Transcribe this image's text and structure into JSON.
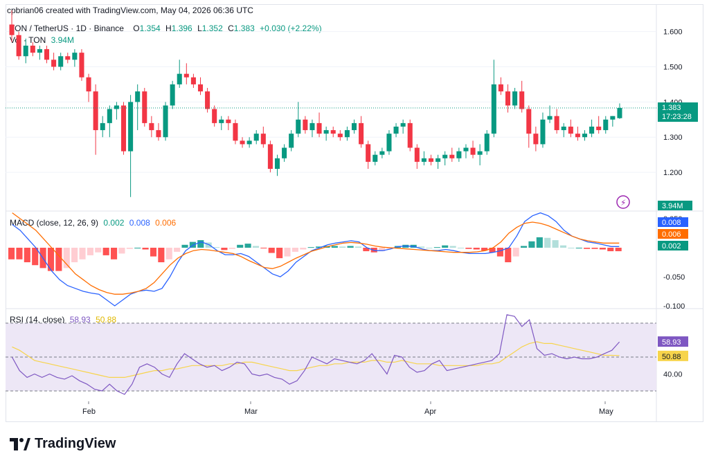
{
  "header": {
    "caption": "cpbrian06 created with TradingView.com, May 04, 2026 06:36 UTC"
  },
  "legend": {
    "symbol": "TON / TetherUS · 1D · Binance",
    "open_label": "O",
    "open": "1.354",
    "high_label": "H",
    "high": "1.396",
    "low_label": "L",
    "low": "1.352",
    "close_label": "C",
    "close": "1.383",
    "change": "+0.030 (+2.22%)",
    "vol_label": "Vol · TON",
    "vol": "3.94M"
  },
  "price_axis": {
    "ticks": [
      "1.600",
      "1.500",
      "1.400",
      "1.300",
      "1.200"
    ],
    "last_price": "1.383",
    "countdown": "17:23:28",
    "vol_badge": "3.94M"
  },
  "macd": {
    "label": "MACD (close, 12, 26, 9)",
    "macd_value": "0.002",
    "signal_value": "0.008",
    "hist_value": "0.006",
    "ticks": [
      "0.050",
      "-0.050",
      "-0.100"
    ],
    "badge_signal": "0.008",
    "badge_hist": "0.006",
    "badge_macd": "0.002"
  },
  "rsi": {
    "label": "RSI (14, close)",
    "rsi_value": "58.93",
    "ma_value": "50.88",
    "ticks": [
      "40.00"
    ],
    "badge_rsi": "58.93",
    "badge_ma": "50.88"
  },
  "time_axis": {
    "labels": [
      "Feb",
      "Mar",
      "Apr",
      "May"
    ]
  },
  "brand": {
    "name": "TradingView"
  },
  "colors": {
    "up": "#089981",
    "down": "#f23645",
    "macd_line": "#2962ff",
    "signal_line": "#ff6d00",
    "rsi_line": "#7e57c2",
    "rsi_ma": "#f7d44b",
    "rsi_band": "#ede7f6"
  },
  "chart_data": {
    "type": "candlestick",
    "candles": [
      [
        1.62,
        1.66,
        1.57,
        1.59
      ],
      [
        1.59,
        1.6,
        1.52,
        1.53
      ],
      [
        1.53,
        1.58,
        1.51,
        1.56
      ],
      [
        1.56,
        1.57,
        1.53,
        1.54
      ],
      [
        1.54,
        1.56,
        1.52,
        1.55
      ],
      [
        1.55,
        1.56,
        1.51,
        1.52
      ],
      [
        1.52,
        1.54,
        1.49,
        1.5
      ],
      [
        1.5,
        1.54,
        1.49,
        1.53
      ],
      [
        1.53,
        1.54,
        1.51,
        1.52
      ],
      [
        1.52,
        1.55,
        1.5,
        1.54
      ],
      [
        1.54,
        1.55,
        1.46,
        1.47
      ],
      [
        1.47,
        1.48,
        1.4,
        1.43
      ],
      [
        1.43,
        1.45,
        1.25,
        1.32
      ],
      [
        1.32,
        1.36,
        1.3,
        1.34
      ],
      [
        1.34,
        1.39,
        1.3,
        1.38
      ],
      [
        1.38,
        1.4,
        1.35,
        1.39
      ],
      [
        1.39,
        1.4,
        1.25,
        1.26
      ],
      [
        1.26,
        1.42,
        1.13,
        1.4
      ],
      [
        1.4,
        1.45,
        1.32,
        1.43
      ],
      [
        1.43,
        1.44,
        1.33,
        1.34
      ],
      [
        1.34,
        1.36,
        1.3,
        1.32
      ],
      [
        1.32,
        1.34,
        1.29,
        1.3
      ],
      [
        1.3,
        1.4,
        1.29,
        1.39
      ],
      [
        1.39,
        1.46,
        1.38,
        1.45
      ],
      [
        1.45,
        1.52,
        1.44,
        1.48
      ],
      [
        1.48,
        1.51,
        1.45,
        1.47
      ],
      [
        1.47,
        1.48,
        1.44,
        1.45
      ],
      [
        1.45,
        1.47,
        1.42,
        1.43
      ],
      [
        1.43,
        1.44,
        1.37,
        1.38
      ],
      [
        1.38,
        1.39,
        1.33,
        1.34
      ],
      [
        1.34,
        1.36,
        1.32,
        1.35
      ],
      [
        1.35,
        1.36,
        1.32,
        1.34
      ],
      [
        1.34,
        1.35,
        1.28,
        1.29
      ],
      [
        1.29,
        1.3,
        1.27,
        1.28
      ],
      [
        1.28,
        1.3,
        1.27,
        1.29
      ],
      [
        1.29,
        1.32,
        1.28,
        1.31
      ],
      [
        1.31,
        1.33,
        1.27,
        1.28
      ],
      [
        1.28,
        1.29,
        1.2,
        1.21
      ],
      [
        1.21,
        1.25,
        1.19,
        1.24
      ],
      [
        1.24,
        1.28,
        1.23,
        1.27
      ],
      [
        1.27,
        1.32,
        1.26,
        1.31
      ],
      [
        1.31,
        1.4,
        1.3,
        1.35
      ],
      [
        1.35,
        1.36,
        1.31,
        1.32
      ],
      [
        1.32,
        1.35,
        1.3,
        1.34
      ],
      [
        1.34,
        1.37,
        1.3,
        1.31
      ],
      [
        1.31,
        1.33,
        1.29,
        1.32
      ],
      [
        1.32,
        1.33,
        1.3,
        1.31
      ],
      [
        1.31,
        1.32,
        1.29,
        1.3
      ],
      [
        1.3,
        1.33,
        1.29,
        1.32
      ],
      [
        1.32,
        1.35,
        1.31,
        1.34
      ],
      [
        1.34,
        1.36,
        1.27,
        1.28
      ],
      [
        1.28,
        1.29,
        1.21,
        1.23
      ],
      [
        1.23,
        1.26,
        1.22,
        1.25
      ],
      [
        1.25,
        1.27,
        1.24,
        1.26
      ],
      [
        1.26,
        1.32,
        1.25,
        1.31
      ],
      [
        1.31,
        1.34,
        1.3,
        1.33
      ],
      [
        1.33,
        1.35,
        1.31,
        1.34
      ],
      [
        1.34,
        1.35,
        1.26,
        1.27
      ],
      [
        1.27,
        1.28,
        1.21,
        1.23
      ],
      [
        1.23,
        1.26,
        1.22,
        1.24
      ],
      [
        1.24,
        1.25,
        1.22,
        1.23
      ],
      [
        1.23,
        1.25,
        1.21,
        1.24
      ],
      [
        1.24,
        1.26,
        1.22,
        1.25
      ],
      [
        1.25,
        1.27,
        1.23,
        1.24
      ],
      [
        1.24,
        1.27,
        1.23,
        1.26
      ],
      [
        1.26,
        1.28,
        1.24,
        1.27
      ],
      [
        1.27,
        1.29,
        1.24,
        1.25
      ],
      [
        1.25,
        1.28,
        1.22,
        1.26
      ],
      [
        1.26,
        1.32,
        1.25,
        1.31
      ],
      [
        1.31,
        1.52,
        1.3,
        1.45
      ],
      [
        1.45,
        1.47,
        1.42,
        1.43
      ],
      [
        1.43,
        1.45,
        1.37,
        1.39
      ],
      [
        1.39,
        1.44,
        1.38,
        1.43
      ],
      [
        1.43,
        1.46,
        1.37,
        1.38
      ],
      [
        1.38,
        1.39,
        1.27,
        1.31
      ],
      [
        1.31,
        1.33,
        1.26,
        1.28
      ],
      [
        1.28,
        1.37,
        1.27,
        1.35
      ],
      [
        1.35,
        1.39,
        1.34,
        1.36
      ],
      [
        1.36,
        1.38,
        1.31,
        1.32
      ],
      [
        1.32,
        1.34,
        1.3,
        1.33
      ],
      [
        1.33,
        1.35,
        1.3,
        1.31
      ],
      [
        1.31,
        1.33,
        1.29,
        1.3
      ],
      [
        1.3,
        1.32,
        1.29,
        1.31
      ],
      [
        1.31,
        1.35,
        1.3,
        1.33
      ],
      [
        1.33,
        1.36,
        1.31,
        1.32
      ],
      [
        1.32,
        1.36,
        1.31,
        1.35
      ],
      [
        1.35,
        1.36,
        1.33,
        1.36
      ],
      [
        1.354,
        1.396,
        1.352,
        1.383
      ]
    ],
    "volume_note": "",
    "macd_series": {
      "macd": [
        0.04,
        0.03,
        0.015,
        0.0,
        -0.02,
        -0.04,
        -0.055,
        -0.065,
        -0.07,
        -0.075,
        -0.078,
        -0.08,
        -0.09,
        -0.1,
        -0.09,
        -0.08,
        -0.075,
        -0.073,
        -0.075,
        -0.07,
        -0.05,
        -0.025,
        -0.005,
        0.005,
        0.01,
        0.005,
        -0.005,
        -0.012,
        -0.012,
        -0.01,
        -0.015,
        -0.025,
        -0.035,
        -0.045,
        -0.05,
        -0.04,
        -0.025,
        -0.015,
        -0.005,
        0.0,
        0.005,
        0.008,
        0.01,
        0.012,
        0.01,
        0.0,
        -0.005,
        -0.005,
        -0.002,
        0.002,
        0.003,
        0.002,
        -0.002,
        -0.005,
        -0.005,
        -0.003,
        -0.005,
        -0.008,
        -0.01,
        -0.01,
        -0.01,
        -0.008,
        -0.005,
        0.0,
        0.02,
        0.045,
        0.055,
        0.06,
        0.055,
        0.045,
        0.03,
        0.02,
        0.015,
        0.01,
        0.008,
        0.005,
        0.002,
        0.002
      ],
      "signal": [
        0.06,
        0.05,
        0.04,
        0.03,
        0.015,
        0.0,
        -0.015,
        -0.03,
        -0.045,
        -0.055,
        -0.065,
        -0.072,
        -0.077,
        -0.08,
        -0.08,
        -0.078,
        -0.075,
        -0.07,
        -0.06,
        -0.045,
        -0.03,
        -0.018,
        -0.01,
        -0.005,
        -0.003,
        -0.004,
        -0.006,
        -0.008,
        -0.01,
        -0.015,
        -0.022,
        -0.028,
        -0.034,
        -0.036,
        -0.032,
        -0.025,
        -0.018,
        -0.012,
        -0.006,
        -0.002,
        0.002,
        0.005,
        0.008,
        0.009,
        0.008,
        0.006,
        0.003,
        0.001,
        0.0,
        -0.001,
        -0.002,
        -0.003,
        -0.004,
        -0.005,
        -0.006,
        -0.007,
        -0.008,
        -0.008,
        -0.008,
        -0.007,
        -0.005,
        0.0,
        0.01,
        0.025,
        0.035,
        0.042,
        0.044,
        0.042,
        0.038,
        0.032,
        0.026,
        0.02,
        0.015,
        0.012,
        0.01,
        0.008,
        0.008,
        0.008
      ]
    },
    "rsi_series": {
      "rsi": [
        50,
        42,
        38,
        40,
        38,
        40,
        38,
        37,
        39,
        36,
        34,
        31,
        30,
        34,
        30,
        28,
        34,
        44,
        46,
        44,
        40,
        38,
        46,
        52,
        49,
        46,
        44,
        45,
        42,
        44,
        47,
        46,
        40,
        39,
        40,
        38,
        37,
        34,
        36,
        42,
        50,
        48,
        46,
        49,
        48,
        47,
        46,
        48,
        52,
        46,
        40,
        51,
        50,
        44,
        41,
        42,
        46,
        48,
        42,
        43,
        44,
        45,
        46,
        47,
        48,
        52,
        75,
        74,
        68,
        72,
        55,
        51,
        52,
        50,
        49,
        50,
        49,
        49,
        50,
        52,
        54,
        58.93
      ],
      "ma": [
        56,
        54,
        51,
        48,
        47,
        46,
        45,
        44,
        43,
        42,
        41,
        40,
        39,
        38,
        38,
        38,
        39,
        40,
        41,
        42,
        42,
        43,
        43,
        44,
        45,
        45,
        45,
        45,
        45,
        46,
        46,
        47,
        47,
        46,
        45,
        44,
        43,
        42,
        42,
        43,
        44,
        45,
        45,
        46,
        46,
        47,
        47,
        47,
        48,
        48,
        47,
        47,
        48,
        47,
        46,
        46,
        46,
        45,
        45,
        45,
        45,
        45,
        45,
        46,
        46,
        47,
        50,
        53,
        56,
        58,
        59,
        58,
        58,
        57,
        56,
        55,
        54,
        53,
        52,
        51,
        51,
        50.88
      ]
    }
  }
}
